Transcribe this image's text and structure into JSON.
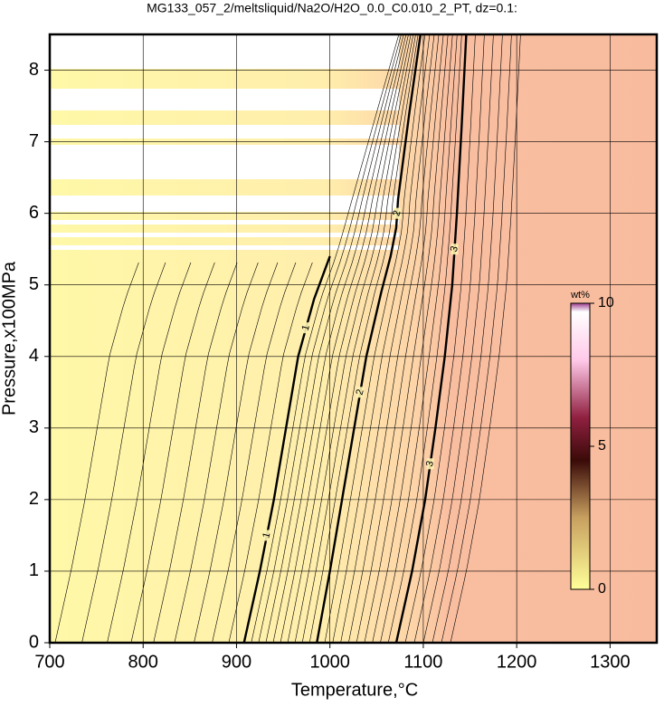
{
  "chart_data": {
    "type": "contour",
    "title": "MG133_057_2/meltsliquid/Na2O/H2O_0.0_C0.010_2_PT, dz=0.1:",
    "x_label": "Temperature,°C",
    "y_label": "Pressure,x100MPa",
    "xlim": [
      700,
      1350
    ],
    "ylim": [
      0,
      8.5
    ],
    "xticks": [
      700,
      800,
      900,
      1000,
      1100,
      1200,
      1300
    ],
    "yticks": [
      0,
      1,
      2,
      3,
      4,
      5,
      6,
      7,
      8
    ],
    "grid": true,
    "contours": [
      {
        "level": 1,
        "x": [
          908,
          925,
          940,
          953,
          966,
          983,
          1000
        ],
        "y": [
          0,
          1,
          2,
          3,
          4,
          4.8,
          5.4
        ]
      },
      {
        "level": 2,
        "x": [
          986,
          1000,
          1013,
          1026,
          1039,
          1055,
          1065,
          1071,
          1073,
          1085,
          1097
        ],
        "y": [
          0,
          1,
          2,
          3,
          4,
          4.9,
          5.4,
          5.8,
          6.2,
          7.4,
          8.5
        ]
      },
      {
        "level": 3,
        "x": [
          1071,
          1088,
          1102,
          1113,
          1123,
          1131,
          1136,
          1141,
          1146
        ],
        "y": [
          0,
          1,
          2,
          3,
          4,
          5,
          6,
          7.2,
          8.5
        ]
      }
    ],
    "colorbar": {
      "label": "wt%",
      "lim": [
        0,
        10
      ],
      "ticks": [
        0,
        5,
        10
      ]
    }
  }
}
